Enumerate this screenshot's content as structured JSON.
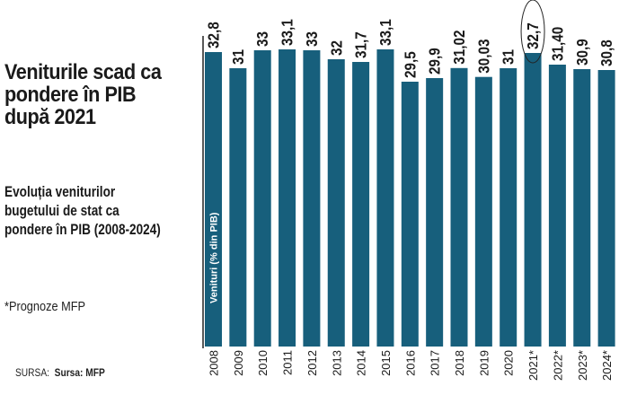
{
  "title": "Veniturile scad ca pondere în PIB după 2021",
  "subtitle": "Evoluția veniturilor bugetului de stat ca pondere în PIB (2008-2024)",
  "note": "*Prognoze MFP",
  "source_label": "SURSA:",
  "source_value": "Sursa: MFP",
  "chart_data": {
    "type": "bar",
    "ylabel": "Venituri (% din PIB)",
    "categories": [
      "2008",
      "2009",
      "2010",
      "2011",
      "2012",
      "2013",
      "2014",
      "2015",
      "2016",
      "2017",
      "2018",
      "2019",
      "2020",
      "2021*",
      "2022*",
      "2023*",
      "2024*"
    ],
    "values": [
      32.8,
      31,
      33,
      33.1,
      33,
      32,
      31.7,
      33.1,
      29.5,
      29.9,
      31.02,
      30.03,
      31,
      32.7,
      31.4,
      30.9,
      30.8
    ],
    "data_labels": [
      "32,8",
      "31",
      "33",
      "33,1",
      "33",
      "32",
      "31,7",
      "33,1",
      "29,5",
      "29,9",
      "31,02",
      "30,03",
      "31",
      "32,7",
      "31,40",
      "30,9",
      "30,8"
    ],
    "highlighted": "2021*",
    "bar_color": "#175f7c",
    "grid": false
  }
}
